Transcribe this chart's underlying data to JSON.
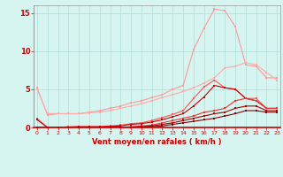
{
  "xlabel": "Vent moyen/en rafales ( km/h )",
  "x": [
    0,
    1,
    2,
    3,
    4,
    5,
    6,
    7,
    8,
    9,
    10,
    11,
    12,
    13,
    14,
    15,
    16,
    17,
    18,
    19,
    20,
    21,
    22,
    23
  ],
  "series": [
    {
      "color": "#ff9999",
      "linewidth": 0.8,
      "y": [
        5.2,
        1.6,
        1.8,
        1.8,
        1.8,
        2.0,
        2.2,
        2.5,
        2.8,
        3.2,
        3.5,
        3.9,
        4.3,
        5.0,
        5.5,
        10.2,
        13.0,
        15.5,
        15.3,
        13.2,
        8.2,
        8.0,
        6.5,
        6.5
      ]
    },
    {
      "color": "#ffaaaa",
      "linewidth": 0.8,
      "y": [
        5.0,
        1.8,
        1.8,
        1.8,
        1.8,
        1.9,
        2.0,
        2.2,
        2.5,
        2.8,
        3.1,
        3.5,
        3.9,
        4.3,
        4.7,
        5.2,
        5.8,
        6.5,
        7.8,
        8.0,
        8.5,
        8.2,
        7.2,
        6.2
      ]
    },
    {
      "color": "#ff5555",
      "linewidth": 0.8,
      "y": [
        1.2,
        0.0,
        0.0,
        0.1,
        0.1,
        0.1,
        0.1,
        0.2,
        0.3,
        0.5,
        0.6,
        0.9,
        1.3,
        1.7,
        2.2,
        3.8,
        5.3,
        6.2,
        5.2,
        5.0,
        3.8,
        3.8,
        2.5,
        2.5
      ]
    },
    {
      "color": "#cc0000",
      "linewidth": 0.8,
      "y": [
        1.0,
        0.0,
        0.0,
        0.05,
        0.1,
        0.1,
        0.1,
        0.15,
        0.2,
        0.4,
        0.5,
        0.7,
        1.0,
        1.4,
        1.8,
        2.8,
        4.0,
        5.5,
        5.2,
        5.0,
        3.8,
        3.5,
        2.5,
        2.5
      ]
    },
    {
      "color": "#ee3333",
      "linewidth": 0.8,
      "y": [
        0.0,
        0.0,
        0.0,
        0.0,
        0.0,
        0.0,
        0.0,
        0.0,
        0.0,
        0.1,
        0.2,
        0.3,
        0.6,
        0.9,
        1.2,
        1.5,
        2.0,
        2.2,
        2.5,
        3.5,
        3.8,
        3.5,
        2.5,
        2.5
      ]
    },
    {
      "color": "#aa0000",
      "linewidth": 0.8,
      "y": [
        0.0,
        0.0,
        0.0,
        0.0,
        0.0,
        0.0,
        0.0,
        0.0,
        0.0,
        0.05,
        0.1,
        0.2,
        0.4,
        0.6,
        0.9,
        1.2,
        1.5,
        1.8,
        2.0,
        2.5,
        2.8,
        2.8,
        2.2,
        2.2
      ]
    },
    {
      "color": "#880000",
      "linewidth": 0.8,
      "y": [
        0.0,
        0.0,
        0.0,
        0.0,
        0.0,
        0.0,
        0.0,
        0.0,
        0.0,
        0.0,
        0.05,
        0.1,
        0.2,
        0.4,
        0.6,
        0.8,
        1.0,
        1.2,
        1.5,
        1.8,
        2.2,
        2.2,
        2.0,
        2.0
      ]
    }
  ],
  "ylim": [
    0,
    16
  ],
  "yticks": [
    0,
    5,
    10,
    15
  ],
  "xlim": [
    0,
    23
  ],
  "bg_color": "#d6f5f0",
  "grid_color": "#b0ddd8",
  "label_color": "#cc0000"
}
